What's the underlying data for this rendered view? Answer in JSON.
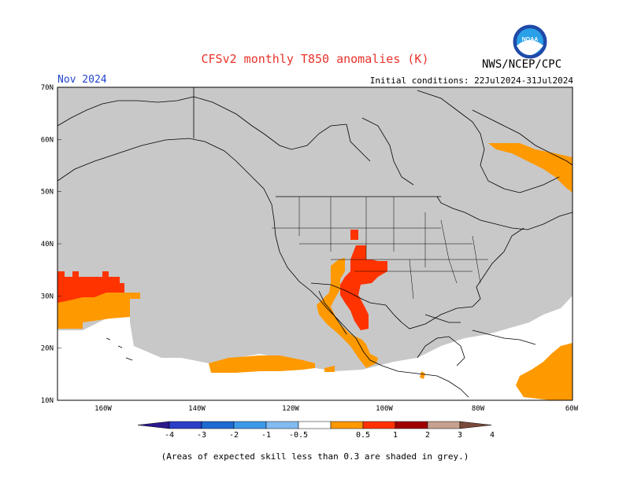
{
  "title": "CFSv2 monthly T850 anomalies (K)",
  "valid_date": "Nov 2024",
  "initial_conditions": "Initial conditions: 22Jul2024-31Jul2024",
  "agency": "NWS/NCEP/CPC",
  "logo_text": "NOAA",
  "footnote": "(Areas of expected skill less than 0.3 are shaded in grey.)",
  "map": {
    "lat_labels": [
      "70N",
      "60N",
      "50N",
      "40N",
      "30N",
      "20N",
      "10N"
    ],
    "lon_labels": [
      "160W",
      "140W",
      "120W",
      "100W",
      "80W",
      "60W"
    ],
    "colors": {
      "low_skill_grey": "#c8c8c8",
      "anom_0_5_1": "#ff9900",
      "anom_1_2": "#ff3300",
      "border": "#000000"
    }
  },
  "colorbar": {
    "labels": [
      "-4",
      "-3",
      "-2",
      "-1",
      "-0.5",
      "0.5",
      "1",
      "2",
      "3",
      "4"
    ],
    "colors": [
      "#2a1a8c",
      "#2a3ec8",
      "#1e6ad2",
      "#3d9ae8",
      "#82bcf0",
      "#ffffff",
      "#ff9900",
      "#ff3300",
      "#a00000",
      "#c8a090",
      "#7a4a3a"
    ]
  }
}
